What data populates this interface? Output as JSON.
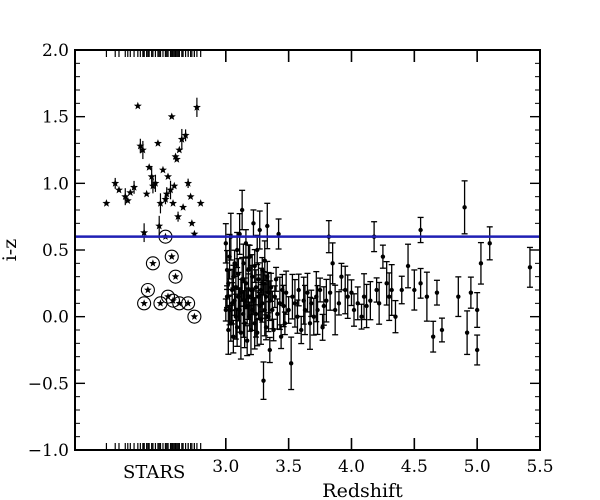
{
  "chart_data": {
    "type": "scatter",
    "xlabel": "Redshift",
    "ylabel": "i-z",
    "xlim": [
      1.8,
      5.5
    ],
    "ylim": [
      -1.0,
      2.0
    ],
    "grid": false,
    "x_ticks": [
      "3.0",
      "3.5",
      "4.0",
      "4.5",
      "5.0",
      "5.5"
    ],
    "y_ticks": [
      "2.0",
      "1.5",
      "1.0",
      "0.5",
      "0.0",
      "−0.5",
      "−1.0"
    ],
    "stars_label": "STARS",
    "threshold_line": {
      "y": 0.6,
      "color": "#1f1fb4"
    },
    "star_points": [
      [
        2.05,
        0.85
      ],
      [
        2.12,
        1.0
      ],
      [
        2.15,
        0.95
      ],
      [
        2.2,
        0.9
      ],
      [
        2.22,
        0.87
      ],
      [
        2.24,
        0.93
      ],
      [
        2.27,
        0.97
      ],
      [
        2.3,
        1.58
      ],
      [
        2.32,
        1.28
      ],
      [
        2.34,
        1.25
      ],
      [
        2.35,
        0.63
      ],
      [
        2.37,
        0.92
      ],
      [
        2.39,
        1.12
      ],
      [
        2.41,
        1.05
      ],
      [
        2.42,
        0.98
      ],
      [
        2.44,
        1.0
      ],
      [
        2.46,
        1.3
      ],
      [
        2.47,
        0.68
      ],
      [
        2.48,
        0.85
      ],
      [
        2.5,
        1.1
      ],
      [
        2.52,
        0.88
      ],
      [
        2.53,
        0.92
      ],
      [
        2.54,
        1.05
      ],
      [
        2.56,
        0.95
      ],
      [
        2.57,
        1.5
      ],
      [
        2.58,
        0.85
      ],
      [
        2.59,
        0.98
      ],
      [
        2.6,
        1.2
      ],
      [
        2.61,
        1.18
      ],
      [
        2.62,
        0.75
      ],
      [
        2.63,
        1.25
      ],
      [
        2.65,
        1.33
      ],
      [
        2.66,
        0.82
      ],
      [
        2.68,
        1.36
      ],
      [
        2.7,
        1.0
      ],
      [
        2.72,
        0.9
      ],
      [
        2.73,
        0.7
      ],
      [
        2.75,
        0.62
      ],
      [
        2.77,
        1.57
      ],
      [
        2.8,
        0.85
      ]
    ],
    "circled_star_points": [
      [
        2.35,
        0.1
      ],
      [
        2.38,
        0.2
      ],
      [
        2.42,
        0.4
      ],
      [
        2.48,
        0.1
      ],
      [
        2.52,
        0.6
      ],
      [
        2.54,
        0.15
      ],
      [
        2.57,
        0.45
      ],
      [
        2.58,
        0.12
      ],
      [
        2.6,
        0.3
      ],
      [
        2.63,
        0.1
      ],
      [
        2.7,
        0.1
      ],
      [
        2.75,
        0.0
      ]
    ],
    "qso_points": [
      [
        3.0,
        0.05
      ],
      [
        3.0,
        0.55
      ],
      [
        3.01,
        0.15
      ],
      [
        3.01,
        0.35
      ],
      [
        3.02,
        -0.1
      ],
      [
        3.02,
        0.25
      ],
      [
        3.03,
        0.45
      ],
      [
        3.03,
        0.05
      ],
      [
        3.04,
        0.6
      ],
      [
        3.04,
        -0.05
      ],
      [
        3.05,
        0.2
      ],
      [
        3.05,
        0.1
      ],
      [
        3.06,
        0.3
      ],
      [
        3.06,
        -0.15
      ],
      [
        3.07,
        0.12
      ],
      [
        3.07,
        0.4
      ],
      [
        3.08,
        0.0
      ],
      [
        3.08,
        0.22
      ],
      [
        3.09,
        0.5
      ],
      [
        3.09,
        -0.08
      ],
      [
        3.1,
        0.15
      ],
      [
        3.1,
        0.32
      ],
      [
        3.11,
        0.05
      ],
      [
        3.11,
        0.62
      ],
      [
        3.12,
        -0.12
      ],
      [
        3.12,
        0.18
      ],
      [
        3.13,
        0.8
      ],
      [
        3.13,
        0.28
      ],
      [
        3.14,
        0.02
      ],
      [
        3.14,
        0.4
      ],
      [
        3.15,
        -0.05
      ],
      [
        3.15,
        0.12
      ],
      [
        3.16,
        0.25
      ],
      [
        3.16,
        0.55
      ],
      [
        3.17,
        0.08
      ],
      [
        3.17,
        -0.18
      ],
      [
        3.18,
        0.35
      ],
      [
        3.18,
        0.15
      ],
      [
        3.19,
        0.0
      ],
      [
        3.19,
        0.45
      ],
      [
        3.2,
        0.2
      ],
      [
        3.2,
        -0.1
      ],
      [
        3.21,
        0.05
      ],
      [
        3.21,
        0.3
      ],
      [
        3.22,
        0.7
      ],
      [
        3.22,
        0.12
      ],
      [
        3.23,
        -0.05
      ],
      [
        3.23,
        0.38
      ],
      [
        3.24,
        0.22
      ],
      [
        3.24,
        0.02
      ],
      [
        3.25,
        0.5
      ],
      [
        3.25,
        -0.12
      ],
      [
        3.26,
        0.15
      ],
      [
        3.26,
        0.28
      ],
      [
        3.27,
        0.08
      ],
      [
        3.27,
        0.65
      ],
      [
        3.28,
        -0.02
      ],
      [
        3.28,
        0.2
      ],
      [
        3.29,
        0.35
      ],
      [
        3.29,
        0.1
      ],
      [
        3.3,
        -0.48
      ],
      [
        3.3,
        0.25
      ],
      [
        3.31,
        0.05
      ],
      [
        3.31,
        0.42
      ],
      [
        3.32,
        0.15
      ],
      [
        3.32,
        -0.08
      ],
      [
        3.33,
        0.3
      ],
      [
        3.33,
        0.68
      ],
      [
        3.34,
        0.0
      ],
      [
        3.34,
        0.18
      ],
      [
        3.35,
        -0.25
      ],
      [
        3.35,
        0.12
      ],
      [
        3.36,
        0.22
      ],
      [
        3.37,
        0.05
      ],
      [
        3.38,
        -0.1
      ],
      [
        3.39,
        0.15
      ],
      [
        3.4,
        0.28
      ],
      [
        3.41,
        0.02
      ],
      [
        3.42,
        0.62
      ],
      [
        3.43,
        0.1
      ],
      [
        3.44,
        -0.15
      ],
      [
        3.45,
        0.2
      ],
      [
        3.46,
        0.08
      ],
      [
        3.47,
        -0.05
      ],
      [
        3.48,
        0.18
      ],
      [
        3.5,
        0.05
      ],
      [
        3.52,
        -0.35
      ],
      [
        3.53,
        0.15
      ],
      [
        3.55,
        0.1
      ],
      [
        3.57,
        0.0
      ],
      [
        3.58,
        0.2
      ],
      [
        3.6,
        -0.1
      ],
      [
        3.62,
        0.12
      ],
      [
        3.63,
        0.05
      ],
      [
        3.65,
        0.18
      ],
      [
        3.67,
        -0.05
      ],
      [
        3.68,
        0.1
      ],
      [
        3.7,
        0.0
      ],
      [
        3.72,
        0.15
      ],
      [
        3.73,
        0.05
      ],
      [
        3.75,
        0.2
      ],
      [
        3.77,
        -0.08
      ],
      [
        3.78,
        0.08
      ],
      [
        3.8,
        0.12
      ],
      [
        3.82,
        0.6
      ],
      [
        3.83,
        0.18
      ],
      [
        3.85,
        0.4
      ],
      [
        3.87,
        0.05
      ],
      [
        3.9,
        0.1
      ],
      [
        3.92,
        0.3
      ],
      [
        3.95,
        0.2
      ],
      [
        3.97,
        0.15
      ],
      [
        4.0,
        0.18
      ],
      [
        4.02,
        0.05
      ],
      [
        4.05,
        0.1
      ],
      [
        4.08,
        0.0
      ],
      [
        4.1,
        0.15
      ],
      [
        4.12,
        0.08
      ],
      [
        4.15,
        0.12
      ],
      [
        4.18,
        0.6
      ],
      [
        4.2,
        0.2
      ],
      [
        4.22,
        0.1
      ],
      [
        4.25,
        0.45
      ],
      [
        4.28,
        0.25
      ],
      [
        4.3,
        0.15
      ],
      [
        4.32,
        0.2
      ],
      [
        4.35,
        0.0
      ],
      [
        4.4,
        0.2
      ],
      [
        4.45,
        0.38
      ],
      [
        4.5,
        0.2
      ],
      [
        4.55,
        0.25
      ],
      [
        4.55,
        0.65
      ],
      [
        4.6,
        0.15
      ],
      [
        4.65,
        -0.15
      ],
      [
        4.68,
        0.18
      ],
      [
        4.72,
        -0.1
      ],
      [
        4.85,
        0.15
      ],
      [
        4.9,
        0.82
      ],
      [
        4.92,
        -0.12
      ],
      [
        4.95,
        0.18
      ],
      [
        5.0,
        -0.25
      ],
      [
        5.0,
        0.05
      ],
      [
        5.03,
        0.4
      ],
      [
        5.1,
        0.55
      ],
      [
        5.42,
        0.37
      ]
    ]
  }
}
